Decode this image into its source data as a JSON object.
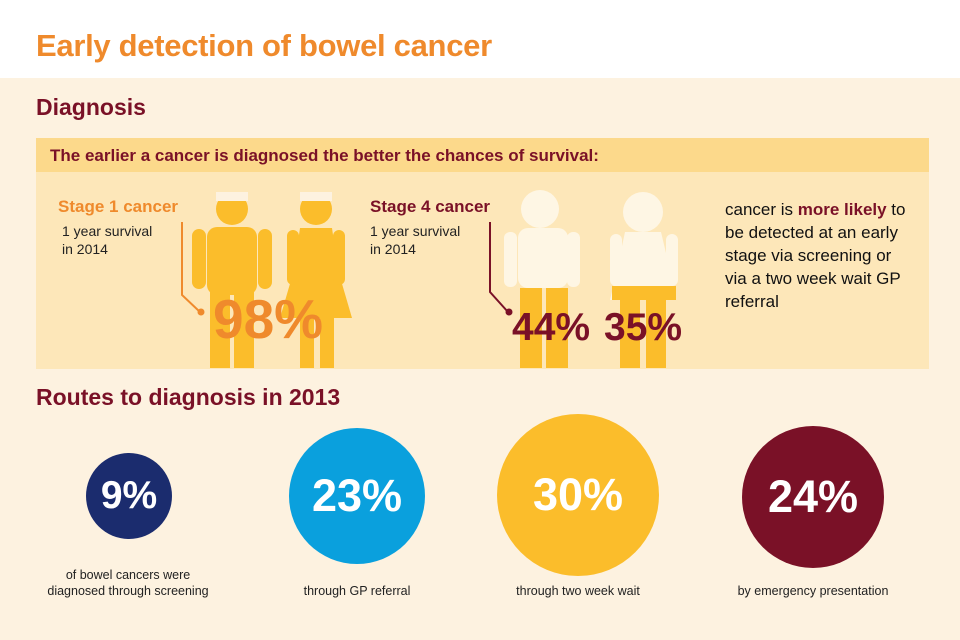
{
  "title": "Early detection of bowel cancer",
  "diagnosis": {
    "heading": "Diagnosis",
    "banner": "The earlier a cancer is diagnosed the better the chances of survival:",
    "stage1": {
      "label": "Stage 1 cancer",
      "survival_line1": "1 year survival",
      "survival_line2": "in 2014",
      "percent": "98%"
    },
    "stage4": {
      "label": "Stage 4 cancer",
      "survival_line1": "1 year survival",
      "survival_line2": "in 2014",
      "percent_male": "44%",
      "percent_female": "35%"
    },
    "note": {
      "part1": "cancer is ",
      "emphasis": "more likely",
      "part2": " to be detected at an early stage via screening or via a two week wait GP referral"
    }
  },
  "routes": {
    "heading": "Routes to diagnosis in 2013",
    "items": [
      {
        "percent": "9%",
        "caption_line1": "of bowel cancers were",
        "caption_line2": "diagnosed through screening",
        "color": "#1b2c6e"
      },
      {
        "percent": "23%",
        "caption_line1": "through GP referral",
        "caption_line2": "",
        "color": "#0aa0dd"
      },
      {
        "percent": "30%",
        "caption_line1": "through two week wait",
        "caption_line2": "",
        "color": "#fbbd2b"
      },
      {
        "percent": "24%",
        "caption_line1": "by emergency presentation",
        "caption_line2": "",
        "color": "#7a1127"
      }
    ]
  },
  "colors": {
    "orange": "#ef8a2c",
    "maroon": "#7a1127",
    "fill_yellow": "#fbbd2b",
    "empty_fill": "#fdf2e0"
  }
}
